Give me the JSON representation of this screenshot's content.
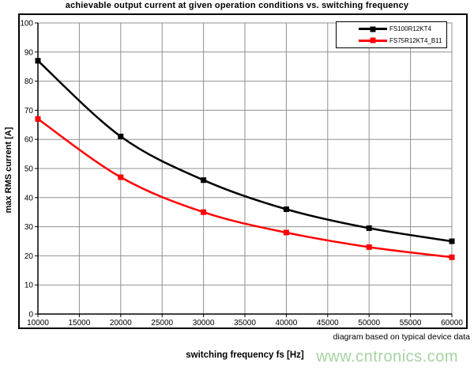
{
  "title": "achievable output current at given operation conditions vs. switching frequency",
  "footnote": "diagram based on typical device data",
  "watermark": "www.cntronics.com",
  "colors": {
    "series_black": "#000000",
    "series_red": "#ff0000",
    "grid": "#909090",
    "axis": "#000000",
    "watermark_green": "#a6d2a0"
  },
  "legend": {
    "items": [
      {
        "label": "FS100R12KT4",
        "color": "#000000"
      },
      {
        "label": "FS75R12KT4_B11",
        "color": "#ff0000"
      }
    ]
  },
  "chart_data": {
    "type": "line",
    "title": "achievable output current at given operation conditions vs. switching frequency",
    "xlabel": "switching frequency fs [Hz]",
    "ylabel": "max RMS current [A]",
    "x": [
      10000,
      20000,
      30000,
      40000,
      50000,
      60000
    ],
    "series": [
      {
        "name": "FS100R12KT4",
        "color": "#000000",
        "values": [
          87,
          61,
          46,
          36,
          29.5,
          25
        ]
      },
      {
        "name": "FS75R12KT4_B11",
        "color": "#ff0000",
        "values": [
          67,
          47,
          35,
          28,
          23,
          19.5
        ]
      }
    ],
    "xlim": [
      10000,
      60000
    ],
    "ylim": [
      0,
      100
    ],
    "x_tick_step": 5000,
    "y_tick_step": 10,
    "grid": true,
    "legend_position": "top-right",
    "marker": "square",
    "line_width": 2.5
  }
}
